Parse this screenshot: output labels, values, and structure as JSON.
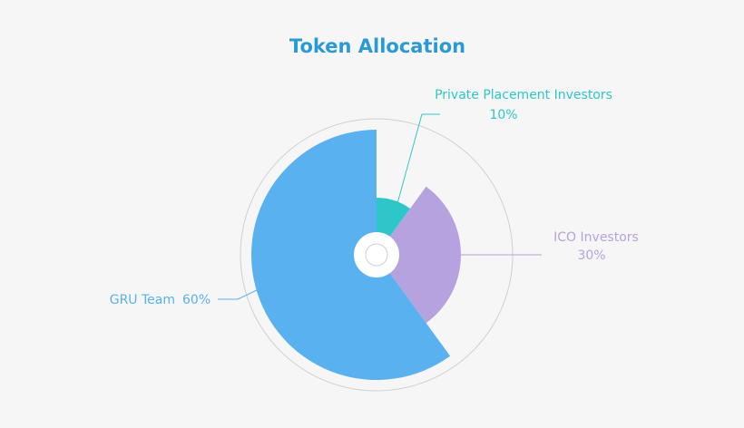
{
  "chart_data": {
    "type": "pie",
    "rose": true,
    "title": "Token Allocation",
    "categories": [
      "Private Placement Investors",
      "ICO Investors",
      "GRU Team"
    ],
    "values": [
      10,
      30,
      60
    ],
    "value_labels": [
      "10%",
      "30%",
      "60%"
    ],
    "colors": [
      "#2ec7c9",
      "#b6a2de",
      "#5ab1ef"
    ]
  }
}
